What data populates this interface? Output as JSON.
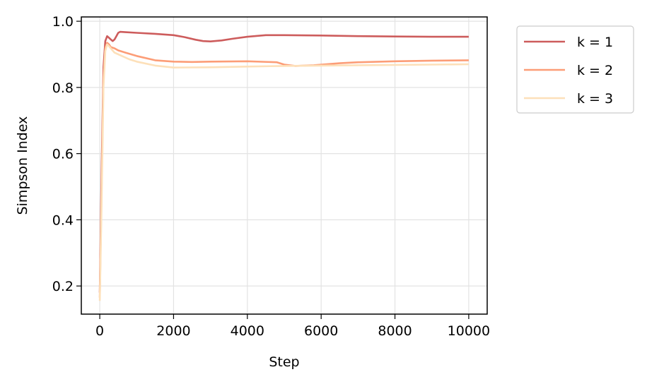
{
  "chart_data": {
    "type": "line",
    "title": "",
    "xlabel": "Step",
    "ylabel": "Simpson Index",
    "xlim": [
      -500,
      10500
    ],
    "ylim": [
      0.115,
      1.013
    ],
    "xticks": [
      0,
      2000,
      4000,
      6000,
      8000,
      10000
    ],
    "xtick_labels": [
      "0",
      "2000",
      "4000",
      "6000",
      "8000",
      "10000"
    ],
    "yticks": [
      0.2,
      0.4,
      0.6,
      0.8,
      1.0
    ],
    "ytick_labels": [
      "0.2",
      "0.4",
      "0.6",
      "0.8",
      "1.0"
    ],
    "grid": true,
    "legend_position": "outside upper right",
    "series": [
      {
        "name": "k = 1",
        "color": "#cd5c5c",
        "x": [
          0,
          50,
          100,
          150,
          200,
          250,
          300,
          350,
          400,
          450,
          500,
          550,
          700,
          1000,
          1500,
          2000,
          2300,
          2600,
          2800,
          3000,
          3300,
          3600,
          4000,
          4500,
          5000,
          6000,
          7000,
          8000,
          9000,
          10000
        ],
        "y": [
          0.18,
          0.55,
          0.86,
          0.94,
          0.955,
          0.95,
          0.945,
          0.94,
          0.945,
          0.955,
          0.965,
          0.968,
          0.967,
          0.965,
          0.962,
          0.958,
          0.952,
          0.944,
          0.94,
          0.939,
          0.942,
          0.947,
          0.953,
          0.958,
          0.958,
          0.957,
          0.955,
          0.954,
          0.953,
          0.953
        ]
      },
      {
        "name": "k = 2",
        "color": "#fc9d77",
        "x": [
          0,
          50,
          100,
          150,
          200,
          250,
          300,
          400,
          500,
          700,
          1000,
          1500,
          2000,
          2500,
          3000,
          4000,
          4800,
          5000,
          5300,
          5800,
          6500,
          7000,
          8000,
          9000,
          10000
        ],
        "y": [
          0.165,
          0.5,
          0.83,
          0.92,
          0.935,
          0.93,
          0.922,
          0.918,
          0.912,
          0.905,
          0.895,
          0.882,
          0.878,
          0.877,
          0.878,
          0.879,
          0.876,
          0.869,
          0.865,
          0.867,
          0.873,
          0.876,
          0.879,
          0.881,
          0.882
        ]
      },
      {
        "name": "k = 3",
        "color": "#fde0b9",
        "x": [
          0,
          50,
          100,
          150,
          200,
          250,
          300,
          400,
          600,
          800,
          1000,
          1500,
          2000,
          3000,
          4000,
          5000,
          6000,
          7000,
          8000,
          9000,
          10000
        ],
        "y": [
          0.155,
          0.45,
          0.8,
          0.91,
          0.93,
          0.925,
          0.918,
          0.905,
          0.895,
          0.885,
          0.878,
          0.866,
          0.86,
          0.861,
          0.863,
          0.865,
          0.866,
          0.867,
          0.868,
          0.869,
          0.87
        ]
      }
    ]
  }
}
